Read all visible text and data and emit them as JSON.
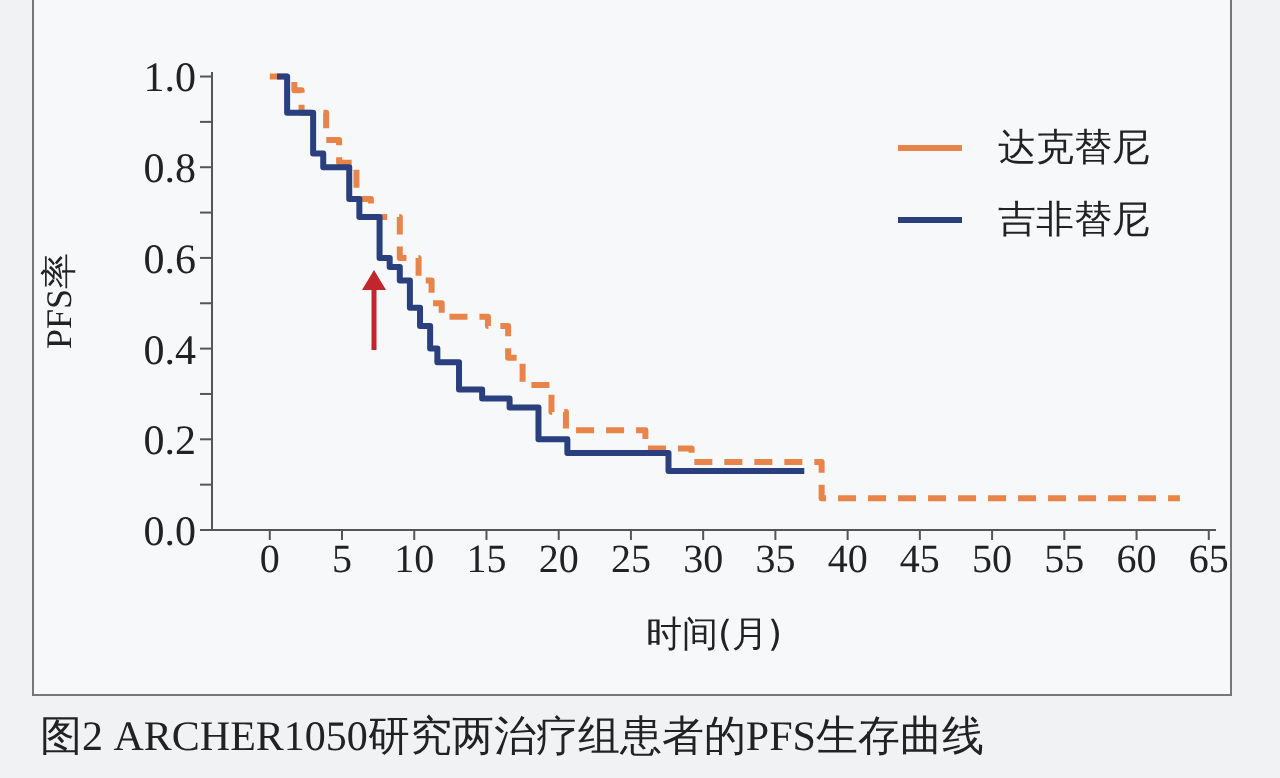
{
  "chart_data": {
    "type": "step",
    "xlabel": "时间(月)",
    "ylabel": "PFS率",
    "annotations": [
      "图2 ARCHER1050研究两治疗组患者的PFS生存曲线"
    ],
    "xlim": [
      -4,
      65.5
    ],
    "xticks": [
      0,
      5,
      10,
      15,
      20,
      25,
      30,
      35,
      40,
      45,
      50,
      55,
      60,
      65
    ],
    "ylim": [
      0,
      1.01
    ],
    "yticks": [
      {
        "value": 0,
        "label": "0.0"
      },
      {
        "value": 0.1,
        "label": null
      },
      {
        "value": 0.2,
        "label": "0.2"
      },
      {
        "value": 0.3,
        "label": null
      },
      {
        "value": 0.4,
        "label": "0.4"
      },
      {
        "value": 0.5,
        "label": null
      },
      {
        "value": 0.6,
        "label": "0.6"
      },
      {
        "value": 0.7,
        "label": null
      },
      {
        "value": 0.8,
        "label": "0.8"
      },
      {
        "value": 0.9,
        "label": null
      },
      {
        "value": 1,
        "label": "1.0"
      }
    ],
    "legend": "top right",
    "grid": false,
    "series": [
      {
        "name": "达克替尼",
        "color": "#e8834a",
        "line_style": "dashed",
        "x": [
          0,
          1.7,
          2.2,
          3.9,
          4.8,
          6,
          7,
          9,
          10.3,
          11.2,
          11.9,
          15.1,
          16.5,
          17.5,
          19.5,
          20.5,
          26,
          29.2,
          38.2,
          63
        ],
        "values": [
          1.0,
          0.97,
          0.92,
          0.86,
          0.81,
          0.73,
          0.69,
          0.6,
          0.55,
          0.5,
          0.47,
          0.45,
          0.38,
          0.32,
          0.26,
          0.22,
          0.18,
          0.15,
          0.07,
          0.07
        ]
      },
      {
        "name": "吉非替尼",
        "color": "#2a3f7e",
        "line_style": "solid",
        "x": [
          0.5,
          1.2,
          3,
          3.7,
          5.5,
          6.2,
          7.6,
          8.3,
          9,
          9.7,
          10.4,
          11.1,
          11.6,
          13.1,
          14.7,
          16.6,
          18.6,
          20.6,
          27.6,
          37
        ],
        "values": [
          1.0,
          0.92,
          0.83,
          0.8,
          0.73,
          0.69,
          0.6,
          0.58,
          0.55,
          0.49,
          0.45,
          0.4,
          0.37,
          0.31,
          0.29,
          0.27,
          0.2,
          0.17,
          0.13,
          0.13
        ]
      }
    ]
  }
}
